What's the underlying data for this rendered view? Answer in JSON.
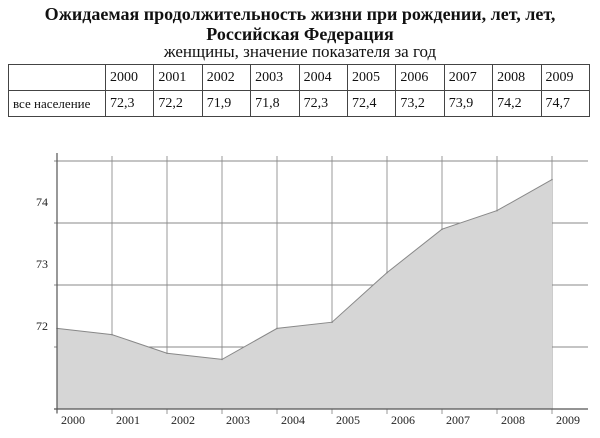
{
  "title": "Ожидаемая продолжительность жизни при рождении, лет, лет, Российская Федерация",
  "title_line1": "Ожидаемая продолжительность жизни при рождении, лет, лет,",
  "title_line2": "Российская Федерация",
  "subtitle": "женщины, значение показателя за год",
  "table": {
    "row_label": "все население",
    "years": [
      "2000",
      "2001",
      "2002",
      "2003",
      "2004",
      "2005",
      "2006",
      "2007",
      "2008",
      "2009"
    ],
    "values": [
      "72,3",
      "72,2",
      "71,9",
      "71,8",
      "72,3",
      "72,4",
      "73,2",
      "73,9",
      "74,2",
      "74,7"
    ]
  },
  "chart_data": {
    "type": "area",
    "title": "Ожидаемая продолжительность жизни при рождении, лет, лет, Российская Федерация",
    "subtitle": "женщины, значение показателя за год",
    "categories": [
      "2000",
      "2001",
      "2002",
      "2003",
      "2004",
      "2005",
      "2006",
      "2007",
      "2008",
      "2009"
    ],
    "values": [
      72.3,
      72.2,
      71.9,
      71.8,
      72.3,
      72.4,
      73.2,
      73.9,
      74.2,
      74.7
    ],
    "yticks": [
      "72",
      "73",
      "74"
    ],
    "ylim": [
      71,
      75
    ],
    "grid": true,
    "xlabel": "",
    "ylabel": "",
    "fill_color": "#d6d6d6",
    "line_color": "#888888"
  }
}
